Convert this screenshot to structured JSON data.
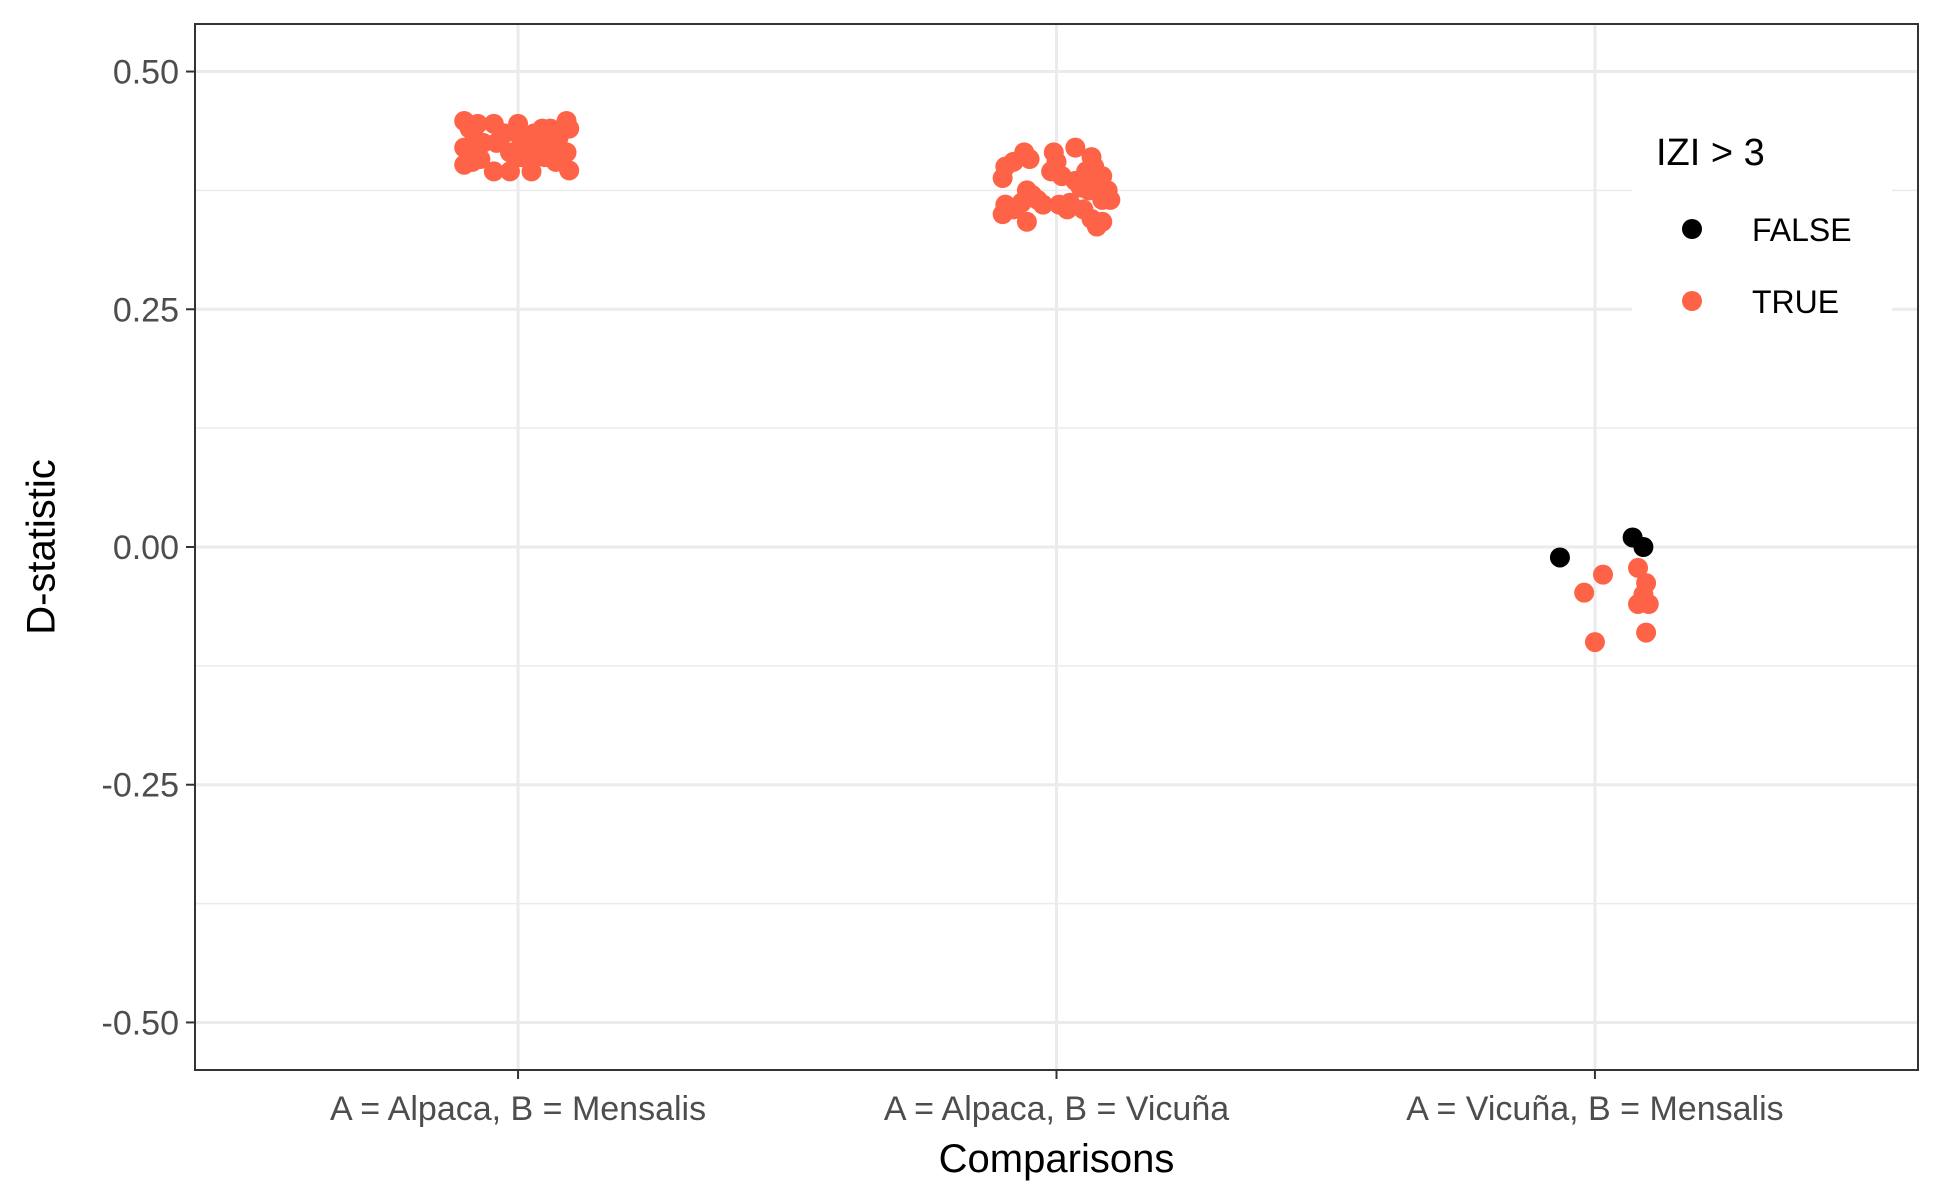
{
  "chart_data": {
    "type": "scatter",
    "title": "",
    "xlabel": "Comparisons",
    "ylabel": "D-statistic",
    "categories": [
      "A = Alpaca, B = Mensalis",
      "A = Alpaca, B = Vicuña",
      "A = Vicuña, B = Mensalis"
    ],
    "ylim": [
      -0.55,
      0.55
    ],
    "y_ticks": [
      0.5,
      0.25,
      0.0,
      -0.25,
      -0.5
    ],
    "y_tick_labels": [
      "0.50",
      "0.25",
      "0.00",
      "-0.25",
      "-0.50"
    ],
    "grid": true,
    "legend": {
      "title": "IZI > 3",
      "position": "right",
      "entries": [
        {
          "label": "FALSE",
          "color": "#000000"
        },
        {
          "label": "TRUE",
          "color": "#FF6347"
        }
      ]
    },
    "colors": {
      "FALSE": "#000000",
      "TRUE": "#FF6347"
    },
    "series": [
      {
        "name": "FALSE",
        "points": [
          {
            "category": "A = Vicuña, B = Mensalis",
            "jitter": -0.065,
            "y": -0.011
          },
          {
            "category": "A = Vicuña, B = Mensalis",
            "jitter": 0.07,
            "y": 0.01
          },
          {
            "category": "A = Vicuña, B = Mensalis",
            "jitter": 0.09,
            "y": 0.0
          }
        ]
      },
      {
        "name": "TRUE",
        "points": [
          {
            "category": "A = Alpaca, B = Mensalis",
            "jitter": -0.1,
            "y": 0.448
          },
          {
            "category": "A = Alpaca, B = Mensalis",
            "jitter": -0.09,
            "y": 0.44
          },
          {
            "category": "A = Alpaca, B = Mensalis",
            "jitter": -0.08,
            "y": 0.43
          },
          {
            "category": "A = Alpaca, B = Mensalis",
            "jitter": -0.075,
            "y": 0.445
          },
          {
            "category": "A = Alpaca, B = Mensalis",
            "jitter": -0.065,
            "y": 0.425
          },
          {
            "category": "A = Alpaca, B = Mensalis",
            "jitter": -0.1,
            "y": 0.42
          },
          {
            "category": "A = Alpaca, B = Mensalis",
            "jitter": -0.09,
            "y": 0.415
          },
          {
            "category": "A = Alpaca, B = Mensalis",
            "jitter": -0.075,
            "y": 0.41
          },
          {
            "category": "A = Alpaca, B = Mensalis",
            "jitter": -0.1,
            "y": 0.402
          },
          {
            "category": "A = Alpaca, B = Mensalis",
            "jitter": -0.085,
            "y": 0.405
          },
          {
            "category": "A = Alpaca, B = Mensalis",
            "jitter": -0.07,
            "y": 0.408
          },
          {
            "category": "A = Alpaca, B = Mensalis",
            "jitter": -0.045,
            "y": 0.445
          },
          {
            "category": "A = Alpaca, B = Mensalis",
            "jitter": -0.04,
            "y": 0.425
          },
          {
            "category": "A = Alpaca, B = Mensalis",
            "jitter": -0.045,
            "y": 0.395
          },
          {
            "category": "A = Alpaca, B = Mensalis",
            "jitter": -0.025,
            "y": 0.435
          },
          {
            "category": "A = Alpaca, B = Mensalis",
            "jitter": -0.015,
            "y": 0.415
          },
          {
            "category": "A = Alpaca, B = Mensalis",
            "jitter": -0.015,
            "y": 0.395
          },
          {
            "category": "A = Alpaca, B = Mensalis",
            "jitter": 0.0,
            "y": 0.445
          },
          {
            "category": "A = Alpaca, B = Mensalis",
            "jitter": 0.005,
            "y": 0.43
          },
          {
            "category": "A = Alpaca, B = Mensalis",
            "jitter": 0.005,
            "y": 0.41
          },
          {
            "category": "A = Alpaca, B = Mensalis",
            "jitter": 0.015,
            "y": 0.42
          },
          {
            "category": "A = Alpaca, B = Mensalis",
            "jitter": 0.025,
            "y": 0.405
          },
          {
            "category": "A = Alpaca, B = Mensalis",
            "jitter": 0.025,
            "y": 0.395
          },
          {
            "category": "A = Alpaca, B = Mensalis",
            "jitter": 0.03,
            "y": 0.435
          },
          {
            "category": "A = Alpaca, B = Mensalis",
            "jitter": 0.035,
            "y": 0.418
          },
          {
            "category": "A = Alpaca, B = Mensalis",
            "jitter": 0.045,
            "y": 0.44
          },
          {
            "category": "A = Alpaca, B = Mensalis",
            "jitter": 0.045,
            "y": 0.425
          },
          {
            "category": "A = Alpaca, B = Mensalis",
            "jitter": 0.05,
            "y": 0.41
          },
          {
            "category": "A = Alpaca, B = Mensalis",
            "jitter": 0.055,
            "y": 0.432
          },
          {
            "category": "A = Alpaca, B = Mensalis",
            "jitter": 0.06,
            "y": 0.44
          },
          {
            "category": "A = Alpaca, B = Mensalis",
            "jitter": 0.065,
            "y": 0.42
          },
          {
            "category": "A = Alpaca, B = Mensalis",
            "jitter": 0.07,
            "y": 0.405
          },
          {
            "category": "A = Alpaca, B = Mensalis",
            "jitter": 0.075,
            "y": 0.43
          },
          {
            "category": "A = Alpaca, B = Mensalis",
            "jitter": 0.08,
            "y": 0.415
          },
          {
            "category": "A = Alpaca, B = Mensalis",
            "jitter": 0.09,
            "y": 0.448
          },
          {
            "category": "A = Alpaca, B = Mensalis",
            "jitter": 0.095,
            "y": 0.44
          },
          {
            "category": "A = Alpaca, B = Mensalis",
            "jitter": 0.09,
            "y": 0.415
          },
          {
            "category": "A = Alpaca, B = Mensalis",
            "jitter": 0.095,
            "y": 0.396
          },
          {
            "category": "A = Alpaca, B = Vicuña",
            "jitter": -0.1,
            "y": 0.388
          },
          {
            "category": "A = Alpaca, B = Vicuña",
            "jitter": -0.095,
            "y": 0.4
          },
          {
            "category": "A = Alpaca, B = Vicuña",
            "jitter": -0.08,
            "y": 0.405
          },
          {
            "category": "A = Alpaca, B = Vicuña",
            "jitter": -0.06,
            "y": 0.415
          },
          {
            "category": "A = Alpaca, B = Vicuña",
            "jitter": -0.05,
            "y": 0.408
          },
          {
            "category": "A = Alpaca, B = Vicuña",
            "jitter": -0.095,
            "y": 0.36
          },
          {
            "category": "A = Alpaca, B = Vicuña",
            "jitter": -0.1,
            "y": 0.35
          },
          {
            "category": "A = Alpaca, B = Vicuña",
            "jitter": -0.08,
            "y": 0.355
          },
          {
            "category": "A = Alpaca, B = Vicuña",
            "jitter": -0.065,
            "y": 0.362
          },
          {
            "category": "A = Alpaca, B = Vicuña",
            "jitter": -0.055,
            "y": 0.375
          },
          {
            "category": "A = Alpaca, B = Vicuña",
            "jitter": -0.055,
            "y": 0.342
          },
          {
            "category": "A = Alpaca, B = Vicuña",
            "jitter": -0.045,
            "y": 0.37
          },
          {
            "category": "A = Alpaca, B = Vicuña",
            "jitter": -0.035,
            "y": 0.365
          },
          {
            "category": "A = Alpaca, B = Vicuña",
            "jitter": -0.025,
            "y": 0.36
          },
          {
            "category": "A = Alpaca, B = Vicuña",
            "jitter": -0.01,
            "y": 0.395
          },
          {
            "category": "A = Alpaca, B = Vicuña",
            "jitter": -0.005,
            "y": 0.415
          },
          {
            "category": "A = Alpaca, B = Vicuña",
            "jitter": 0.0,
            "y": 0.405
          },
          {
            "category": "A = Alpaca, B = Vicuña",
            "jitter": 0.005,
            "y": 0.36
          },
          {
            "category": "A = Alpaca, B = Vicuña",
            "jitter": 0.01,
            "y": 0.39
          },
          {
            "category": "A = Alpaca, B = Vicuña",
            "jitter": 0.02,
            "y": 0.355
          },
          {
            "category": "A = Alpaca, B = Vicuña",
            "jitter": 0.025,
            "y": 0.362
          },
          {
            "category": "A = Alpaca, B = Vicuña",
            "jitter": 0.035,
            "y": 0.385
          },
          {
            "category": "A = Alpaca, B = Vicuña",
            "jitter": 0.035,
            "y": 0.42
          },
          {
            "category": "A = Alpaca, B = Vicuña",
            "jitter": 0.045,
            "y": 0.378
          },
          {
            "category": "A = Alpaca, B = Vicuña",
            "jitter": 0.05,
            "y": 0.355
          },
          {
            "category": "A = Alpaca, B = Vicuña",
            "jitter": 0.055,
            "y": 0.395
          },
          {
            "category": "A = Alpaca, B = Vicuña",
            "jitter": 0.06,
            "y": 0.375
          },
          {
            "category": "A = Alpaca, B = Vicuña",
            "jitter": 0.065,
            "y": 0.345
          },
          {
            "category": "A = Alpaca, B = Vicuña",
            "jitter": 0.065,
            "y": 0.41
          },
          {
            "category": "A = Alpaca, B = Vicuña",
            "jitter": 0.07,
            "y": 0.4
          },
          {
            "category": "A = Alpaca, B = Vicuña",
            "jitter": 0.075,
            "y": 0.382
          },
          {
            "category": "A = Alpaca, B = Vicuña",
            "jitter": 0.075,
            "y": 0.337
          },
          {
            "category": "A = Alpaca, B = Vicuña",
            "jitter": 0.085,
            "y": 0.39
          },
          {
            "category": "A = Alpaca, B = Vicuña",
            "jitter": 0.085,
            "y": 0.365
          },
          {
            "category": "A = Alpaca, B = Vicuña",
            "jitter": 0.085,
            "y": 0.342
          },
          {
            "category": "A = Alpaca, B = Vicuña",
            "jitter": 0.095,
            "y": 0.375
          },
          {
            "category": "A = Alpaca, B = Vicuña",
            "jitter": 0.1,
            "y": 0.365
          },
          {
            "category": "A = Vicuña, B = Mensalis",
            "jitter": -0.02,
            "y": -0.048
          },
          {
            "category": "A = Vicuña, B = Mensalis",
            "jitter": 0.015,
            "y": -0.029
          },
          {
            "category": "A = Vicuña, B = Mensalis",
            "jitter": 0.0,
            "y": -0.1
          },
          {
            "category": "A = Vicuña, B = Mensalis",
            "jitter": 0.08,
            "y": -0.022
          },
          {
            "category": "A = Vicuña, B = Mensalis",
            "jitter": 0.095,
            "y": -0.038
          },
          {
            "category": "A = Vicuña, B = Mensalis",
            "jitter": 0.09,
            "y": -0.05
          },
          {
            "category": "A = Vicuña, B = Mensalis",
            "jitter": 0.08,
            "y": -0.06
          },
          {
            "category": "A = Vicuña, B = Mensalis",
            "jitter": 0.1,
            "y": -0.06
          },
          {
            "category": "A = Vicuña, B = Mensalis",
            "jitter": 0.095,
            "y": -0.09
          }
        ]
      }
    ]
  }
}
